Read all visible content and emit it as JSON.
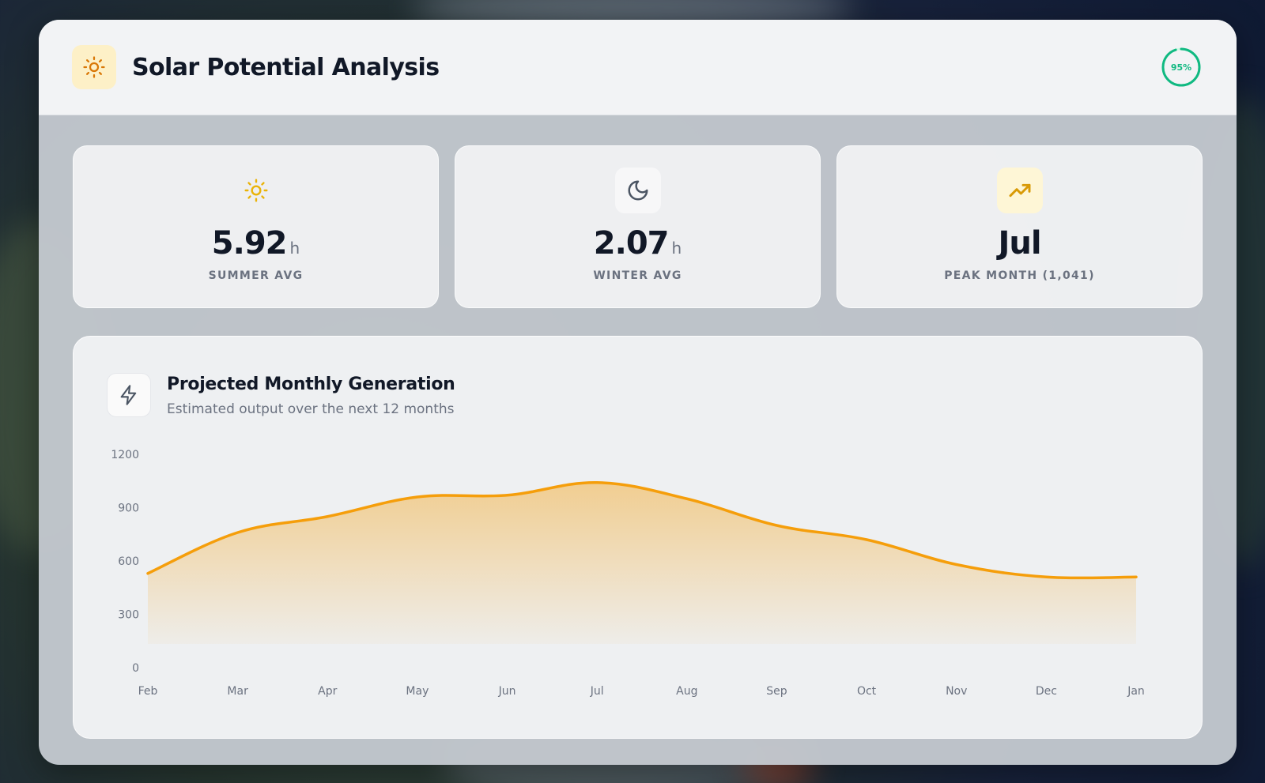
{
  "header": {
    "title": "Solar Potential Analysis",
    "icon": "sun-icon",
    "score_label": "95%",
    "score_value": 0.95,
    "score_color": "#10b981"
  },
  "stats": [
    {
      "icon": "sun-icon",
      "value": "5.92",
      "unit": "h",
      "label": "SUMMER AVG"
    },
    {
      "icon": "moon-icon",
      "value": "2.07",
      "unit": "h",
      "label": "WINTER AVG"
    },
    {
      "icon": "trending-up-icon",
      "value": "Jul",
      "unit": "",
      "label": "PEAK MONTH (1,041)"
    }
  ],
  "chart_panel": {
    "icon": "lightning-icon",
    "title": "Projected Monthly Generation",
    "subtitle": "Estimated output over the next 12 months"
  },
  "colors": {
    "accent": "#f59e0b",
    "success": "#10b981",
    "text_primary": "#111827",
    "text_muted": "#6b7280"
  },
  "chart_data": {
    "type": "area",
    "categories": [
      "Feb",
      "Mar",
      "Apr",
      "May",
      "Jun",
      "Jul",
      "Aug",
      "Sep",
      "Oct",
      "Nov",
      "Dec",
      "Jan"
    ],
    "values": [
      530,
      760,
      850,
      960,
      970,
      1041,
      950,
      800,
      720,
      580,
      510,
      510
    ],
    "yticks": [
      0,
      300,
      600,
      900,
      1200
    ],
    "ylim": [
      0,
      1200
    ],
    "grid": false,
    "legend": "none"
  }
}
